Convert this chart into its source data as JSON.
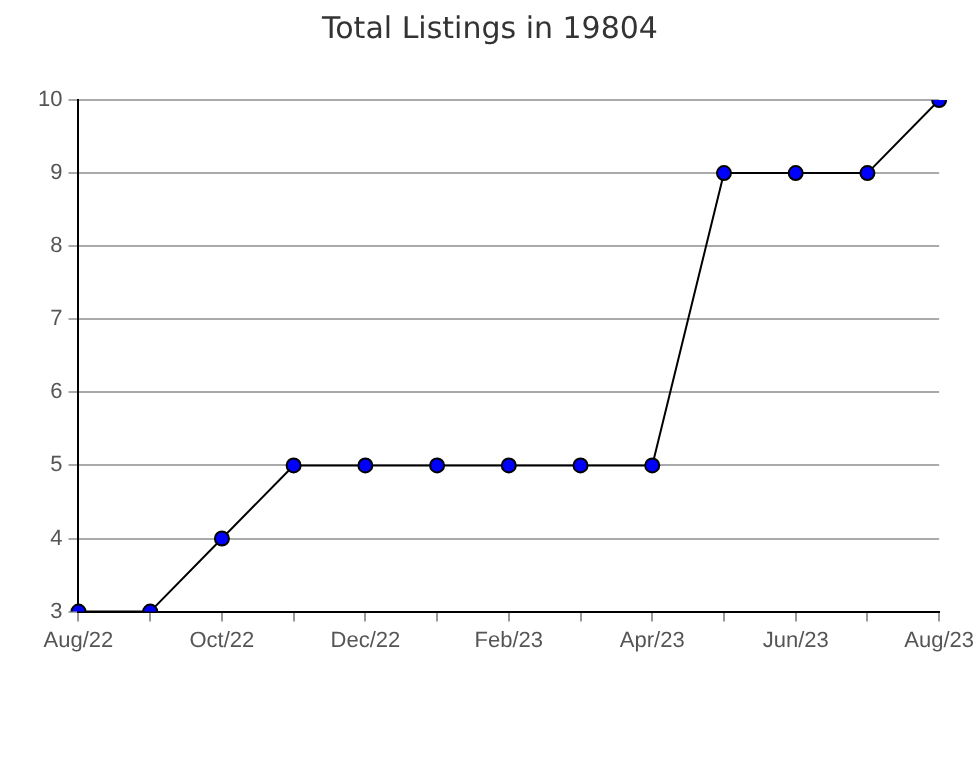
{
  "chart_data": {
    "type": "line",
    "title": "Total Listings in 19804",
    "categories": [
      "Aug/22",
      null,
      "Oct/22",
      null,
      "Dec/22",
      null,
      "Feb/23",
      null,
      "Apr/23",
      null,
      "Jun/23",
      null,
      "Aug/23"
    ],
    "series": [
      {
        "color": "#0000ff",
        "values": [
          3,
          3,
          4,
          5,
          5,
          5,
          5,
          5,
          5,
          9,
          9,
          9,
          10
        ]
      }
    ],
    "ylim": [
      3,
      10
    ],
    "yticks": [
      3,
      4,
      5,
      6,
      7,
      8,
      9,
      10
    ],
    "grid": "y",
    "marker": "circle",
    "line_style": "solid"
  }
}
